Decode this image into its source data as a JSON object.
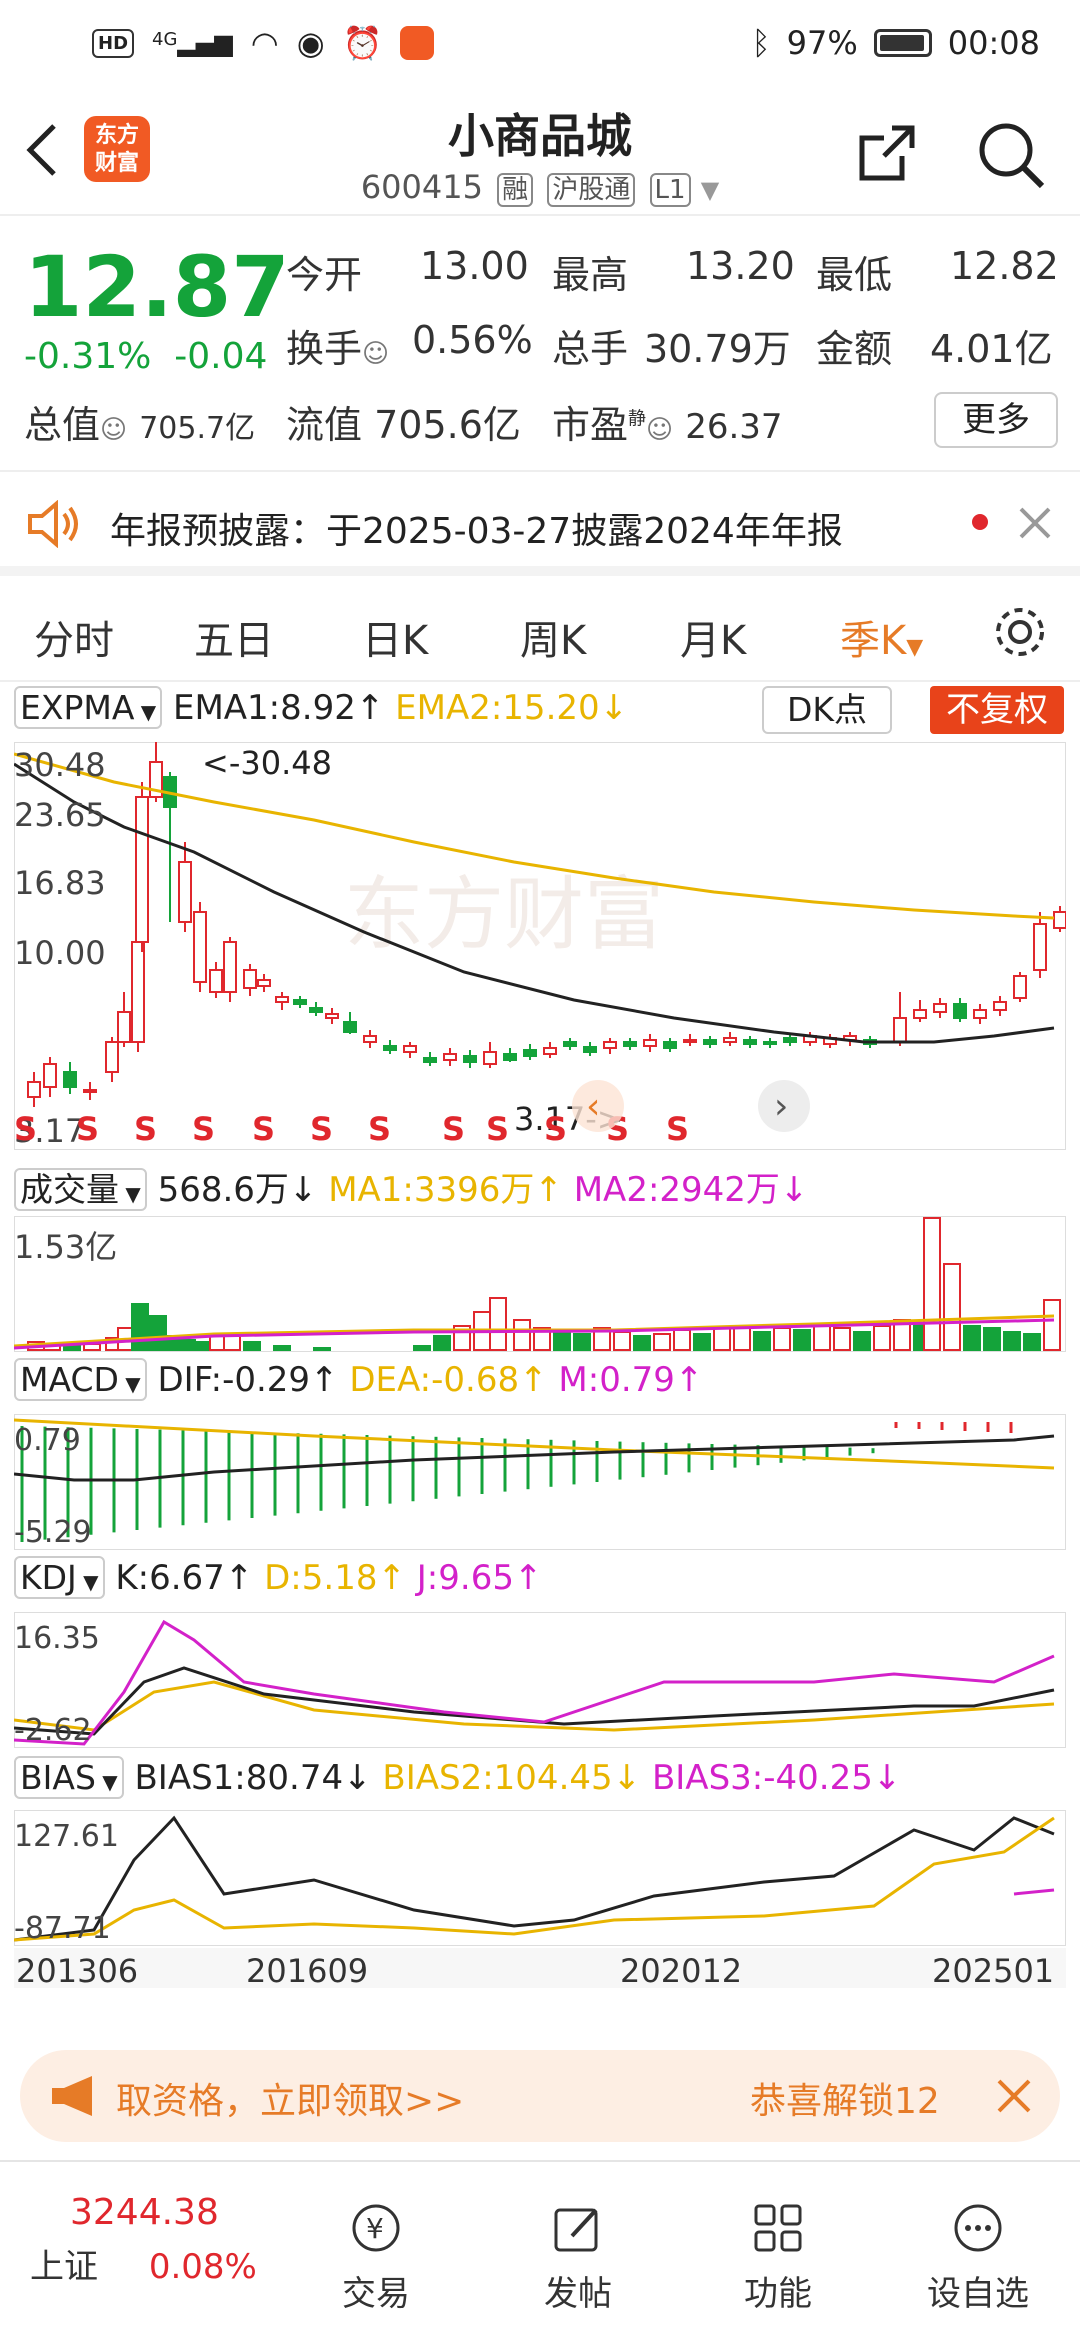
{
  "status_bar": {
    "left_badge": "HD",
    "network": "4G",
    "battery": "97%",
    "time": "00:08"
  },
  "header": {
    "title": "小商品城",
    "code": "600415",
    "tags": [
      "融",
      "沪股通",
      "L1"
    ],
    "logo_text": "东方财富"
  },
  "quote": {
    "price": "12.87",
    "change_pct": "-0.31%",
    "change_abs": "-0.04",
    "open_label": "今开",
    "open": "13.00",
    "high_label": "最高",
    "high": "13.20",
    "low_label": "最低",
    "low": "12.82",
    "turnover_label": "换手",
    "turnover": "0.56%",
    "volume_label": "总手",
    "volume": "30.79万",
    "amount_label": "金额",
    "amount": "4.01亿",
    "mktcap_label": "总值",
    "mktcap": "705.7亿",
    "float_label": "流值",
    "float": "705.6亿",
    "pe_label": "市盈",
    "pe_sup": "静",
    "pe": "26.37",
    "more": "更多"
  },
  "notice": {
    "text": "年报预披露：于2025-03-27披露2024年年报"
  },
  "tabs": [
    "分时",
    "五日",
    "日K",
    "周K",
    "月K",
    "季K"
  ],
  "active_tab": "季K",
  "chart": {
    "indicator": "EXPMA",
    "ema1": "EMA1:8.92↑",
    "ema2": "EMA2:15.20↓",
    "dk": "DK点",
    "fq": "不复权",
    "ylabels": [
      "30.48",
      "23.65",
      "16.83",
      "10.00",
      "3.17"
    ],
    "max_label": "<-30.48",
    "min_label": "3.17->",
    "watermark": "东方财富"
  },
  "volume": {
    "indicator": "成交量",
    "value": "568.6万↓",
    "ma1": "MA1:3396万↑",
    "ma2": "MA2:2942万↓",
    "ylabel": "1.53亿"
  },
  "macd": {
    "indicator": "MACD",
    "dif": "DIF:-0.29↑",
    "dea": "DEA:-0.68↑",
    "m": "M:0.79↑",
    "ytop": "0.79",
    "ybot": "-5.29"
  },
  "kdj": {
    "indicator": "KDJ",
    "k": "K:6.67↑",
    "d": "D:5.18↑",
    "j": "J:9.65↑",
    "ytop": "16.35",
    "ybot": "-2.62"
  },
  "bias": {
    "indicator": "BIAS",
    "b1": "BIAS1:80.74↓",
    "b2": "BIAS2:104.45↓",
    "b3": "BIAS3:-40.25↓",
    "ytop": "127.61",
    "ybot": "-87.71"
  },
  "xaxis": [
    "201306",
    "201609",
    "202012",
    "202501"
  ],
  "banner": {
    "left": "取资格，立即领取>>",
    "right": "恭喜解锁12"
  },
  "nav": {
    "index_value": "3244.38",
    "index_name": "上证",
    "index_pct": "0.08%",
    "items": [
      "交易",
      "发帖",
      "功能",
      "设自选"
    ]
  },
  "colors": {
    "up": "#e0272d",
    "down": "#14a33a",
    "accent": "#e67b27",
    "ema2": "#e8b400",
    "ma2": "#d321c9"
  }
}
